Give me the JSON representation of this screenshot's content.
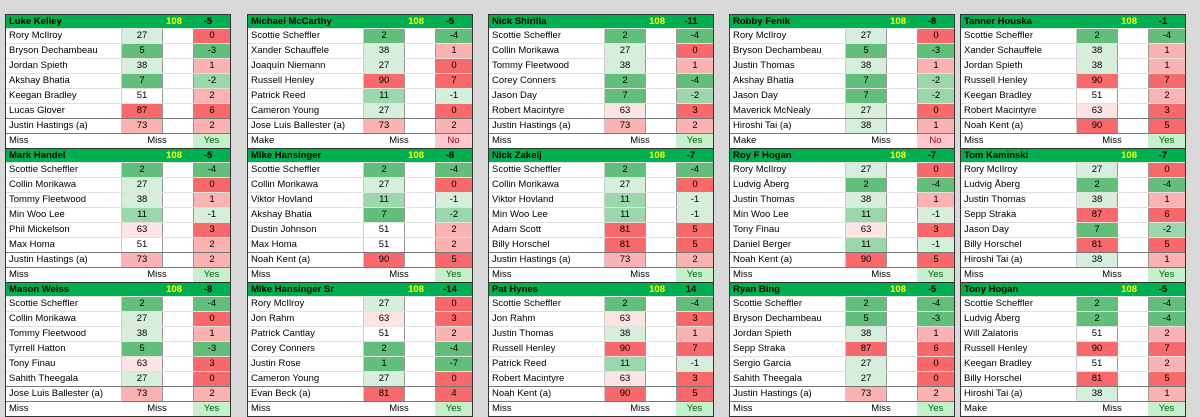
{
  "cards": [
    {
      "name": "Luke Kelley",
      "total": "108",
      "pos": "-5",
      "foot": [
        "Miss",
        "Miss",
        "Yes"
      ],
      "rows": [
        [
          "Rory McIlroy",
          "27",
          "0"
        ],
        [
          "Bryson Dechambeau",
          "5",
          "-3"
        ],
        [
          "Jordan Spieth",
          "38",
          "1"
        ],
        [
          "Akshay Bhatia",
          "7",
          "-2"
        ],
        [
          "Keegan Bradley",
          "51",
          "2"
        ],
        [
          "Lucas Glover",
          "87",
          "6"
        ],
        [
          "Justin Hastings (a)",
          "73",
          "2"
        ]
      ]
    },
    {
      "name": "Michael McCarthy",
      "total": "108",
      "pos": "-5",
      "foot": [
        "Make",
        "Miss",
        "No"
      ],
      "rows": [
        [
          "Scottie Scheffler",
          "2",
          "-4"
        ],
        [
          "Xander Schauffele",
          "38",
          "1"
        ],
        [
          "Joaquín Niemann",
          "27",
          "0"
        ],
        [
          "Russell Henley",
          "90",
          "7"
        ],
        [
          "Patrick Reed",
          "11",
          "-1"
        ],
        [
          "Cameron Young",
          "27",
          "0"
        ],
        [
          "Jose Luis Ballester (a)",
          "73",
          "2"
        ]
      ]
    },
    {
      "name": "Nick Shirilla",
      "total": "108",
      "pos": "-11",
      "foot": [
        "Miss",
        "Miss",
        "Yes"
      ],
      "rows": [
        [
          "Scottie Scheffler",
          "2",
          "-4"
        ],
        [
          "Collin Morikawa",
          "27",
          "0"
        ],
        [
          "Tommy Fleetwood",
          "38",
          "1"
        ],
        [
          "Corey Conners",
          "2",
          "-4"
        ],
        [
          "Jason Day",
          "7",
          "-2"
        ],
        [
          "Robert Macintyre",
          "63",
          "3"
        ],
        [
          "Justin Hastings (a)",
          "73",
          "2"
        ]
      ]
    },
    {
      "name": "Robby Fenik",
      "total": "108",
      "pos": "-8",
      "foot": [
        "Make",
        "Miss",
        "No"
      ],
      "rows": [
        [
          "Rory McIlroy",
          "27",
          "0"
        ],
        [
          "Bryson Dechambeau",
          "5",
          "-3"
        ],
        [
          "Justin Thomas",
          "38",
          "1"
        ],
        [
          "Akshay Bhatia",
          "7",
          "-2"
        ],
        [
          "Jason Day",
          "7",
          "-2"
        ],
        [
          "Maverick McNealy",
          "27",
          "0"
        ],
        [
          "Hiroshi Tai (a)",
          "38",
          "1"
        ]
      ]
    },
    {
      "name": "Tanner Houska",
      "total": "108",
      "pos": "-1",
      "foot": [
        "Miss",
        "Miss",
        "Yes"
      ],
      "rows": [
        [
          "Scottie Scheffler",
          "2",
          "-4"
        ],
        [
          "Xander Schauffele",
          "38",
          "1"
        ],
        [
          "Jordan Spieth",
          "38",
          "1"
        ],
        [
          "Russell Henley",
          "90",
          "7"
        ],
        [
          "Keegan Bradley",
          "51",
          "2"
        ],
        [
          "Robert Macintyre",
          "63",
          "3"
        ],
        [
          "Noah Kent (a)",
          "90",
          "5"
        ]
      ]
    },
    {
      "name": "Mark Handel",
      "total": "108",
      "pos": "-5",
      "foot": [
        "Miss",
        "Miss",
        "Yes"
      ],
      "rows": [
        [
          "Scottie Scheffler",
          "2",
          "-4"
        ],
        [
          "Collin Morikawa",
          "27",
          "0"
        ],
        [
          "Tommy Fleetwood",
          "38",
          "1"
        ],
        [
          "Min Woo Lee",
          "11",
          "-1"
        ],
        [
          "Phil Mickelson",
          "63",
          "3"
        ],
        [
          "Max Homa",
          "51",
          "2"
        ],
        [
          "Justin Hastings (a)",
          "73",
          "2"
        ]
      ]
    },
    {
      "name": "Mike Hansinger",
      "total": "108",
      "pos": "-8",
      "foot": [
        "Miss",
        "Miss",
        "Yes"
      ],
      "rows": [
        [
          "Scottie Scheffler",
          "2",
          "-4"
        ],
        [
          "Collin Morikawa",
          "27",
          "0"
        ],
        [
          "Viktor Hovland",
          "11",
          "-1"
        ],
        [
          "Akshay Bhatia",
          "7",
          "-2"
        ],
        [
          "Dustin Johnson",
          "51",
          "2"
        ],
        [
          "Max Homa",
          "51",
          "2"
        ],
        [
          "Noah Kent (a)",
          "90",
          "5"
        ]
      ]
    },
    {
      "name": "Nick Zakelj",
      "total": "108",
      "pos": "-7",
      "foot": [
        "Miss",
        "Miss",
        "Yes"
      ],
      "rows": [
        [
          "Scottie Scheffler",
          "2",
          "-4"
        ],
        [
          "Collin Morikawa",
          "27",
          "0"
        ],
        [
          "Viktor Hovland",
          "11",
          "-1"
        ],
        [
          "Min Woo Lee",
          "11",
          "-1"
        ],
        [
          "Adam Scott",
          "81",
          "5"
        ],
        [
          "Billy Horschel",
          "81",
          "5"
        ],
        [
          "Justin Hastings (a)",
          "73",
          "2"
        ]
      ]
    },
    {
      "name": "Roy F Hogan",
      "total": "108",
      "pos": "-7",
      "foot": [
        "Miss",
        "Miss",
        "Yes"
      ],
      "rows": [
        [
          "Rory McIlroy",
          "27",
          "0"
        ],
        [
          "Ludvig Åberg",
          "2",
          "-4"
        ],
        [
          "Justin Thomas",
          "38",
          "1"
        ],
        [
          "Min Woo Lee",
          "11",
          "-1"
        ],
        [
          "Tony Finau",
          "63",
          "3"
        ],
        [
          "Daniel Berger",
          "11",
          "-1"
        ],
        [
          "Noah Kent (a)",
          "90",
          "5"
        ]
      ]
    },
    {
      "name": "Tom Kaminski",
      "total": "108",
      "pos": "-7",
      "foot": [
        "Miss",
        "Miss",
        "Yes"
      ],
      "rows": [
        [
          "Rory McIlroy",
          "27",
          "0"
        ],
        [
          "Ludvig Åberg",
          "2",
          "-4"
        ],
        [
          "Justin Thomas",
          "38",
          "1"
        ],
        [
          "Sepp Straka",
          "87",
          "6"
        ],
        [
          "Jason Day",
          "7",
          "-2"
        ],
        [
          "Billy Horschel",
          "81",
          "5"
        ],
        [
          "Hiroshi Tai (a)",
          "38",
          "1"
        ]
      ]
    },
    {
      "name": "Mason Weiss",
      "total": "108",
      "pos": "-8",
      "foot": [
        "Miss",
        "Miss",
        "Yes"
      ],
      "rows": [
        [
          "Scottie Scheffler",
          "2",
          "-4"
        ],
        [
          "Collin Morikawa",
          "27",
          "0"
        ],
        [
          "Tommy Fleetwood",
          "38",
          "1"
        ],
        [
          "Tyrrell Hatton",
          "5",
          "-3"
        ],
        [
          "Tony Finau",
          "63",
          "3"
        ],
        [
          "Sahith Theegala",
          "27",
          "0"
        ],
        [
          "Jose Luis Ballester (a)",
          "73",
          "2"
        ]
      ]
    },
    {
      "name": "Mike Hansinger Sr",
      "total": "108",
      "pos": "-14",
      "foot": [
        "Miss",
        "Miss",
        "Yes"
      ],
      "rows": [
        [
          "Rory McIlroy",
          "27",
          "0"
        ],
        [
          "Jon Rahm",
          "63",
          "3"
        ],
        [
          "Patrick Cantlay",
          "51",
          "2"
        ],
        [
          "Corey Conners",
          "2",
          "-4"
        ],
        [
          "Justin Rose",
          "1",
          "-7"
        ],
        [
          "Cameron Young",
          "27",
          "0"
        ],
        [
          "Evan Beck (a)",
          "81",
          "4"
        ]
      ]
    },
    {
      "name": "Pat Hynes",
      "total": "108",
      "pos": "14",
      "foot": [
        "Miss",
        "Miss",
        "Yes"
      ],
      "rows": [
        [
          "Scottie Scheffler",
          "2",
          "-4"
        ],
        [
          "Jon Rahm",
          "63",
          "3"
        ],
        [
          "Justin Thomas",
          "38",
          "1"
        ],
        [
          "Russell Henley",
          "90",
          "7"
        ],
        [
          "Patrick Reed",
          "11",
          "-1"
        ],
        [
          "Robert Macintyre",
          "63",
          "3"
        ],
        [
          "Noah Kent (a)",
          "90",
          "5"
        ]
      ]
    },
    {
      "name": "Ryan Bing",
      "total": "108",
      "pos": "-5",
      "foot": [
        "Miss",
        "Miss",
        "Yes"
      ],
      "rows": [
        [
          "Scottie Scheffler",
          "2",
          "-4"
        ],
        [
          "Bryson Dechambeau",
          "5",
          "-3"
        ],
        [
          "Jordan Spieth",
          "38",
          "1"
        ],
        [
          "Sepp Straka",
          "87",
          "6"
        ],
        [
          "Sergio Garcia",
          "27",
          "0"
        ],
        [
          "Sahith Theegala",
          "27",
          "0"
        ],
        [
          "Justin Hastings (a)",
          "73",
          "2"
        ]
      ]
    },
    {
      "name": "Tony Hogan",
      "total": "108",
      "pos": "-5",
      "foot": [
        "Make",
        "Miss",
        "Yes"
      ],
      "rows": [
        [
          "Scottie Scheffler",
          "2",
          "-4"
        ],
        [
          "Ludvig Åberg",
          "2",
          "-4"
        ],
        [
          "Will Zalatoris",
          "51",
          "2"
        ],
        [
          "Russell Henley",
          "90",
          "7"
        ],
        [
          "Keegan Bradley",
          "51",
          "2"
        ],
        [
          "Billy Horschel",
          "81",
          "5"
        ],
        [
          "Hiroshi Tai (a)",
          "38",
          "1"
        ]
      ]
    }
  ]
}
